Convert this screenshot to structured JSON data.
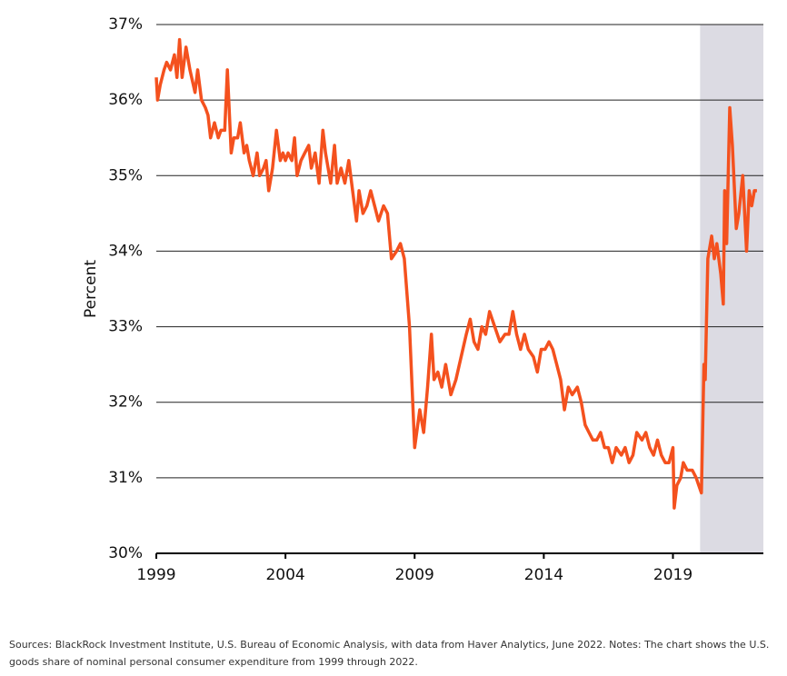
{
  "chart_data": {
    "type": "line",
    "y_label": "Percent",
    "notes": [
      "Sources: BlackRock Investment Institute, U.S. Bureau of Economic Analysis, with data from Haver Analytics, June 2022. Notes: The chart shows the U.S.",
      "goods share of nominal personal consumer expenditure from 1999 through 2022."
    ],
    "color": "#f4511e",
    "shade": {
      "xlim": [
        2020.05,
        2022.5
      ],
      "color": "#dcdbe3"
    },
    "xlim": [
      1999,
      2022.5
    ],
    "xticks": [
      1999,
      2004,
      2009,
      2014,
      2019
    ],
    "ylim": [
      30,
      37
    ],
    "yticks": [
      {
        "value": 30,
        "label": "30%"
      },
      {
        "value": 31,
        "label": "31%"
      },
      {
        "value": 32,
        "label": "32%"
      },
      {
        "value": 33,
        "label": "33%"
      },
      {
        "value": 34,
        "label": "34%"
      },
      {
        "value": 35,
        "label": "35%"
      },
      {
        "value": 36,
        "label": "36%"
      },
      {
        "value": 37,
        "label": "37%"
      }
    ],
    "grid": true,
    "x": [
      1999.0,
      1999.05,
      1999.15,
      1999.3,
      1999.4,
      1999.55,
      1999.7,
      1999.8,
      1999.9,
      2000.0,
      2000.15,
      2000.3,
      2000.5,
      2000.6,
      2000.75,
      2000.9,
      2001.0,
      2001.1,
      2001.25,
      2001.4,
      2001.5,
      2001.65,
      2001.75,
      2001.9,
      2002.0,
      2002.15,
      2002.25,
      2002.4,
      2002.5,
      2002.6,
      2002.75,
      2002.9,
      2003.0,
      2003.15,
      2003.25,
      2003.35,
      2003.5,
      2003.65,
      2003.8,
      2003.9,
      2004.0,
      2004.1,
      2004.25,
      2004.35,
      2004.45,
      2004.6,
      2004.75,
      2004.9,
      2005.0,
      2005.15,
      2005.3,
      2005.45,
      2005.55,
      2005.75,
      2005.9,
      2006.0,
      2006.15,
      2006.3,
      2006.45,
      2006.6,
      2006.75,
      2006.85,
      2007.0,
      2007.15,
      2007.3,
      2007.45,
      2007.6,
      2007.8,
      2007.95,
      2008.1,
      2008.3,
      2008.45,
      2008.6,
      2008.8,
      2009.0,
      2009.2,
      2009.35,
      2009.5,
      2009.65,
      2009.75,
      2009.9,
      2010.05,
      2010.2,
      2010.4,
      2010.6,
      2010.8,
      2011.0,
      2011.15,
      2011.3,
      2011.45,
      2011.6,
      2011.75,
      2011.9,
      2012.1,
      2012.3,
      2012.5,
      2012.65,
      2012.8,
      2012.95,
      2013.1,
      2013.25,
      2013.4,
      2013.6,
      2013.75,
      2013.9,
      2014.05,
      2014.2,
      2014.35,
      2014.5,
      2014.65,
      2014.8,
      2014.95,
      2015.1,
      2015.3,
      2015.45,
      2015.6,
      2015.75,
      2015.9,
      2016.05,
      2016.2,
      2016.35,
      2016.5,
      2016.65,
      2016.8,
      2017.0,
      2017.15,
      2017.3,
      2017.45,
      2017.6,
      2017.8,
      2017.95,
      2018.1,
      2018.25,
      2018.4,
      2018.55,
      2018.7,
      2018.85,
      2019.0,
      2019.05,
      2019.15,
      2019.3,
      2019.4,
      2019.55,
      2019.75,
      2019.9,
      2020.0,
      2020.1,
      2020.2,
      2020.25,
      2020.35,
      2020.5,
      2020.6,
      2020.7,
      2020.85,
      2020.95,
      2021.0,
      2021.08,
      2021.2,
      2021.3,
      2021.45,
      2021.55,
      2021.7,
      2021.85,
      2021.95,
      2022.05,
      2022.15,
      2022.25
    ],
    "values": [
      36.3,
      36.0,
      36.2,
      36.4,
      36.5,
      36.4,
      36.6,
      36.3,
      36.8,
      36.3,
      36.7,
      36.4,
      36.1,
      36.4,
      36.0,
      35.9,
      35.8,
      35.5,
      35.7,
      35.5,
      35.6,
      35.6,
      36.4,
      35.3,
      35.5,
      35.5,
      35.7,
      35.3,
      35.4,
      35.2,
      35.0,
      35.3,
      35.0,
      35.1,
      35.2,
      34.8,
      35.1,
      35.6,
      35.2,
      35.3,
      35.2,
      35.3,
      35.2,
      35.5,
      35.0,
      35.2,
      35.3,
      35.4,
      35.1,
      35.3,
      34.9,
      35.6,
      35.3,
      34.9,
      35.4,
      34.9,
      35.1,
      34.9,
      35.2,
      34.8,
      34.4,
      34.8,
      34.5,
      34.6,
      34.8,
      34.6,
      34.4,
      34.6,
      34.5,
      33.9,
      34.0,
      34.1,
      33.9,
      33.0,
      31.4,
      31.9,
      31.6,
      32.2,
      32.9,
      32.3,
      32.4,
      32.2,
      32.5,
      32.1,
      32.3,
      32.6,
      32.9,
      33.1,
      32.8,
      32.7,
      33.0,
      32.9,
      33.2,
      33.0,
      32.8,
      32.9,
      32.9,
      33.2,
      32.9,
      32.7,
      32.9,
      32.7,
      32.6,
      32.4,
      32.7,
      32.7,
      32.8,
      32.7,
      32.5,
      32.3,
      31.9,
      32.2,
      32.1,
      32.2,
      32.0,
      31.7,
      31.6,
      31.5,
      31.5,
      31.6,
      31.4,
      31.4,
      31.2,
      31.4,
      31.3,
      31.4,
      31.2,
      31.3,
      31.6,
      31.5,
      31.6,
      31.4,
      31.3,
      31.5,
      31.3,
      31.2,
      31.2,
      31.4,
      30.6,
      30.9,
      31.0,
      31.2,
      31.1,
      31.1,
      31.0,
      30.9,
      30.8,
      32.5,
      32.3,
      33.9,
      34.2,
      33.9,
      34.1,
      33.7,
      33.3,
      34.8,
      34.1,
      35.9,
      35.4,
      34.3,
      34.5,
      35.0,
      34.0,
      34.8,
      34.6,
      34.8,
      34.8
    ]
  }
}
